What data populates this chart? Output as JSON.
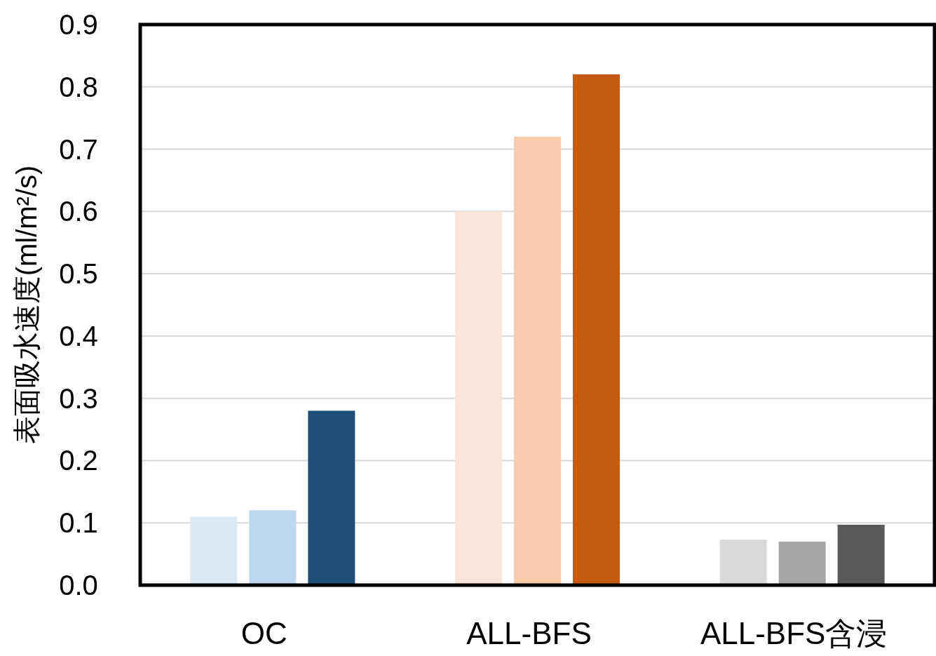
{
  "chart_data": {
    "type": "bar",
    "ylabel": "表面吸水速度(ml/m²/s)",
    "categories": [
      "OC",
      "ALL-BFS",
      "ALL-BFS含浸"
    ],
    "series": [
      {
        "colors": [
          "#dde8f5",
          "#fae5d8",
          "#d9d9d9"
        ],
        "values": [
          0.11,
          0.6,
          0.073
        ]
      },
      {
        "colors": [
          "#bdd7ee",
          "#f7cbac",
          "#a6a6a6"
        ],
        "values": [
          0.12,
          0.72,
          0.07
        ]
      },
      {
        "colors": [
          "#1f4e79",
          "#c55a11",
          "#595959"
        ],
        "values": [
          0.28,
          0.82,
          0.097
        ]
      }
    ],
    "ylim": [
      0,
      0.9
    ],
    "yticks": [
      {
        "value": 0,
        "label": "0.0"
      },
      {
        "value": 0.1,
        "label": "0.1"
      },
      {
        "value": 0.2,
        "label": "0.2"
      },
      {
        "value": 0.3,
        "label": "0.3"
      },
      {
        "value": 0.4,
        "label": "0.4"
      },
      {
        "value": 0.5,
        "label": "0.5"
      },
      {
        "value": 0.6,
        "label": "0.6"
      },
      {
        "value": 0.7,
        "label": "0.7"
      },
      {
        "value": 0.8,
        "label": "0.8"
      },
      {
        "value": 0.9,
        "label": "0.9"
      }
    ],
    "grid": "y"
  }
}
